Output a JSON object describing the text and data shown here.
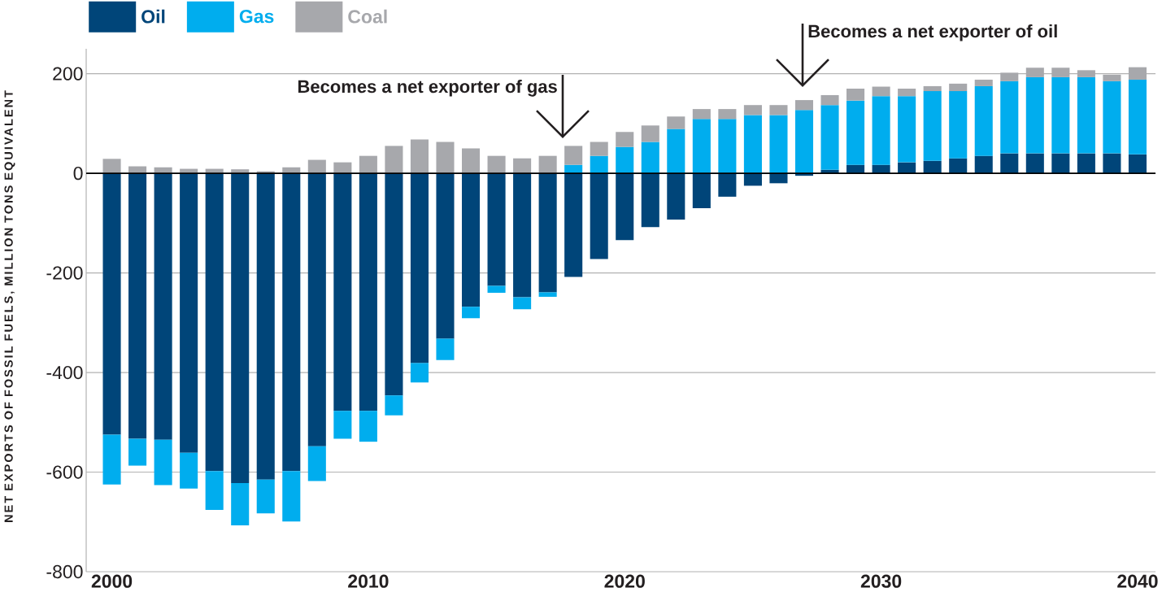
{
  "chart_data": {
    "type": "bar",
    "stacked": true,
    "ylabel": "NET EXPORTS OF FOSSIL FUELS, MILLION TONS EQUIVALENT",
    "x": [
      2000,
      2001,
      2002,
      2003,
      2004,
      2005,
      2006,
      2007,
      2008,
      2009,
      2010,
      2011,
      2012,
      2013,
      2014,
      2015,
      2016,
      2017,
      2018,
      2019,
      2020,
      2021,
      2022,
      2023,
      2024,
      2025,
      2026,
      2027,
      2028,
      2029,
      2030,
      2031,
      2032,
      2033,
      2034,
      2035,
      2036,
      2037,
      2038,
      2039,
      2040
    ],
    "series": [
      {
        "name": "Oil",
        "color": "#004579",
        "values": [
          -525,
          -533,
          -535,
          -561,
          -598,
          -622,
          -615,
          -598,
          -548,
          -477,
          -477,
          -446,
          -381,
          -332,
          -268,
          -226,
          -249,
          -239,
          -208,
          -172,
          -134,
          -108,
          -93,
          -70,
          -47,
          -25,
          -20,
          -5,
          7,
          17,
          17,
          22,
          25,
          30,
          35,
          40,
          40,
          40,
          40,
          40,
          38
        ]
      },
      {
        "name": "Gas",
        "color": "#00adee",
        "values": [
          -100,
          -54,
          -91,
          -72,
          -78,
          -85,
          -68,
          -101,
          -70,
          -56,
          -62,
          -40,
          -39,
          -43,
          -23,
          -14,
          -24,
          -9,
          17,
          35,
          53,
          63,
          89,
          109,
          109,
          117,
          117,
          127,
          130,
          129,
          138,
          133,
          140,
          135,
          140,
          145,
          153,
          153,
          153,
          145,
          150
        ]
      },
      {
        "name": "Coal",
        "color": "#a7a8ac",
        "values": [
          29,
          14,
          12,
          9,
          9,
          8,
          4,
          12,
          27,
          22,
          35,
          55,
          68,
          63,
          50,
          35,
          30,
          35,
          38,
          28,
          30,
          33,
          25,
          20,
          20,
          20,
          20,
          20,
          20,
          24,
          19,
          15,
          10,
          15,
          13,
          17,
          19,
          19,
          14,
          13,
          25
        ]
      }
    ],
    "xlim": [
      1999,
      2040.7
    ],
    "xticks": [
      2000,
      2010,
      2020,
      2030,
      2040
    ],
    "ylim": [
      -800,
      250
    ],
    "yticks": [
      -800,
      -600,
      -400,
      -200,
      0,
      200
    ],
    "grid": "y",
    "legend": "top left",
    "ref_lines": [
      {
        "axis": "y",
        "value": 0,
        "color": "#000000"
      }
    ],
    "annotations": [
      "Becomes a net exporter of gas",
      "Becomes a net exporter of oil"
    ]
  }
}
